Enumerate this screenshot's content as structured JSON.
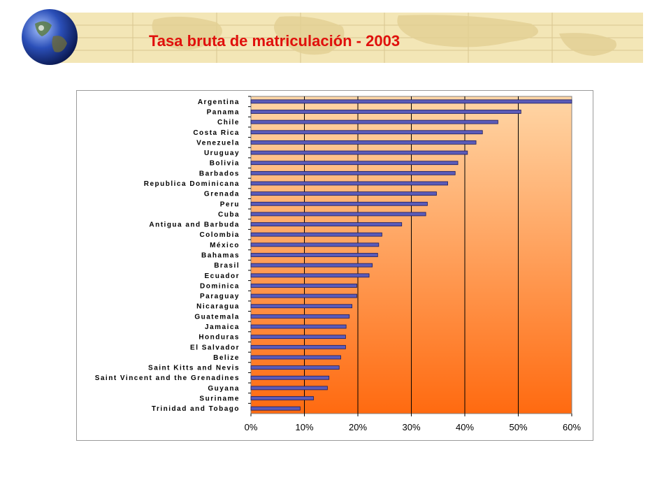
{
  "slide": {
    "title": "Tasa bruta de matriculación - 2003"
  },
  "colors": {
    "title": "#e0100c",
    "bar_fill": "#5b5bb8",
    "bar_edge": "#1c1c5c",
    "plot_top": "#ffd6a6",
    "plot_bottom": "#ff6a10",
    "banner": "#f3e6b6"
  },
  "chart_data": {
    "type": "bar",
    "orientation": "horizontal",
    "categories": [
      "Argentina",
      "Panama",
      "Chile",
      "Costa Rica",
      "Venezuela",
      "Uruguay",
      "Bolivia",
      "Barbados",
      "Republica Dominicana",
      "Grenada",
      "Peru",
      "Cuba",
      "Antigua and Barbuda",
      "Colombia",
      "México",
      "Bahamas",
      "Brasil",
      "Ecuador",
      "Dominica",
      "Paraguay",
      "Nicaragua",
      "Guatemala",
      "Jamaica",
      "Honduras",
      "El Salvador",
      "Belize",
      "Saint Kitts and Nevis",
      "Saint Vincent and the Grenadines",
      "Guyana",
      "Suriname",
      "Trinidad and Tobago"
    ],
    "values": [
      60,
      50.5,
      46.2,
      43.3,
      42.1,
      40.5,
      38.7,
      38.2,
      36.8,
      34.7,
      33.0,
      32.7,
      28.2,
      24.5,
      23.9,
      23.7,
      22.7,
      22.1,
      19.8,
      19.8,
      18.9,
      18.4,
      17.8,
      17.7,
      17.7,
      16.8,
      16.5,
      14.6,
      14.3,
      11.7,
      9.2
    ],
    "xlim": [
      0,
      60
    ],
    "xticks": [
      "0%",
      "10%",
      "20%",
      "30%",
      "40%",
      "50%",
      "60%"
    ],
    "grid": "vertical",
    "legend": "none"
  }
}
